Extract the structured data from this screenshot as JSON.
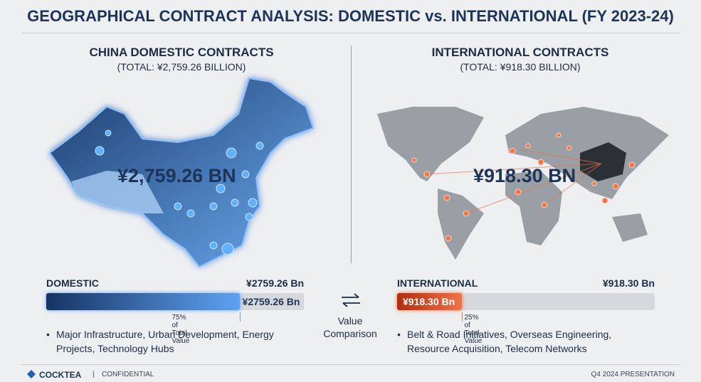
{
  "title": "GEOGRAPHICAL CONTRACT ANALYSIS: DOMESTIC vs. INTERNATIONAL (FY 2023-24)",
  "panels": [
    {
      "heading": "CHINA DOMESTIC CONTRACTS",
      "total": "(TOTAL: ¥2,759.26 BILLION)",
      "map_label": "¥2,759.26 BN",
      "bar_title": "DOMESTIC",
      "bar_value": "¥2759.26 Bn",
      "share": {
        "value": 75,
        "label": "75% of Total Value"
      },
      "colors": [
        "#163463",
        "#5ea3f2"
      ],
      "bullet": "Major Infrastructure, Urban Development, Energy Projects, Technology Hubs"
    },
    {
      "heading": "INTERNATIONAL CONTRACTS",
      "total": "(TOTAL: ¥918.30 BILLION)",
      "map_label": "¥918.30 BN",
      "bar_title": "INTERNATIONAL",
      "bar_value": "¥918.30 Bn",
      "share": {
        "value": 25,
        "label": "25% of Total Value"
      },
      "colors": [
        "#b22d0e",
        "#ef7447"
      ],
      "bullet": "Belt & Road Initiatives, Overseas Engineering, Resource Acquisition, Telecom Networks"
    }
  ],
  "comparison": "Value Comparison",
  "footer": {
    "brand": "COCKTEA",
    "confidential": "CONFIDENTIAL",
    "right": "Q4 2024 PRESENTATION"
  }
}
